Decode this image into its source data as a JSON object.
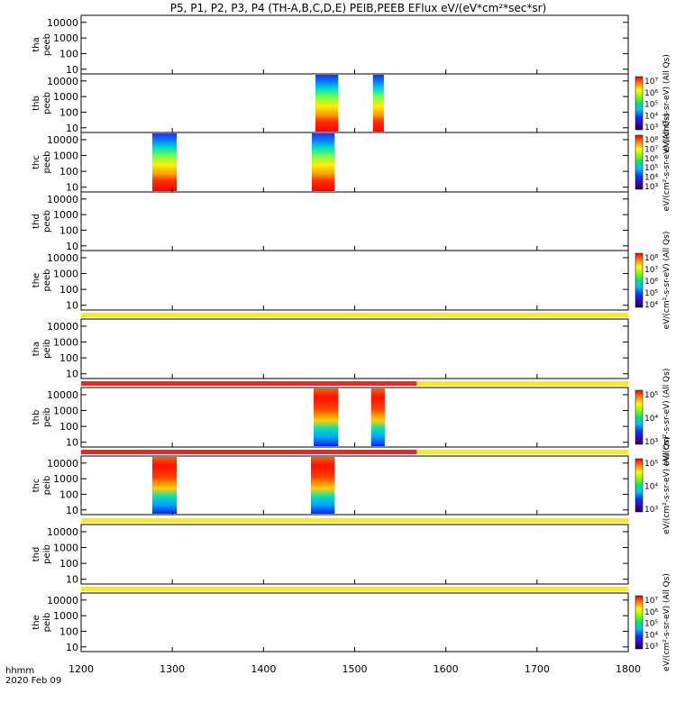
{
  "title": "P5, P1, P2, P3, P4 (TH-A,B,C,D,E) PEIB,PEEB EFlux eV/(eV*cm²*sec*sr)",
  "x_axis": {
    "label_line1": "hhmm",
    "label_line2": "2020 Feb 09",
    "ticks": [
      "1200",
      "1300",
      "1400",
      "1500",
      "1600",
      "1700",
      "1800"
    ]
  },
  "chart_data": {
    "type": "heatmap",
    "time_range": [
      1200,
      1800
    ],
    "energy_axis": {
      "scale": "log",
      "ticks": [
        "10",
        "100",
        "1000",
        "10000"
      ],
      "unit": "eV"
    },
    "panels": [
      {
        "id": "tha_peeb",
        "ylabel": [
          "tha",
          "peeb"
        ],
        "colorbar": {
          "ticks": [],
          "label": ""
        },
        "intervals": [],
        "flag_bar": null
      },
      {
        "id": "thb_peeb",
        "ylabel": [
          "thb",
          "peeb"
        ],
        "colorbar": {
          "ticks": [
            "10³",
            "10⁴",
            "10⁵",
            "10⁶",
            "10⁷"
          ],
          "label": "eV/(cm²-s-sr-eV) (All Qs)"
        },
        "intervals": [
          [
            1457,
            1482
          ],
          [
            1520,
            1532
          ]
        ],
        "flag_bar": null
      },
      {
        "id": "thc_peeb",
        "ylabel": [
          "thc",
          "peeb"
        ],
        "colorbar": {
          "ticks": [
            "10³",
            "10⁴",
            "10⁵",
            "10⁶",
            "10⁷",
            "10⁸"
          ],
          "label": "eV/(cm²-s-sr-eV) (All Qs)"
        },
        "intervals": [
          [
            1278,
            1305
          ],
          [
            1453,
            1478
          ]
        ],
        "flag_bar": null
      },
      {
        "id": "thd_peeb",
        "ylabel": [
          "thd",
          "peeb"
        ],
        "colorbar": {
          "ticks": [],
          "label": ""
        },
        "intervals": [],
        "flag_bar": null
      },
      {
        "id": "the_peeb",
        "ylabel": [
          "the",
          "peeb"
        ],
        "colorbar": {
          "ticks": [
            "10⁴",
            "10⁵",
            "10⁶",
            "10⁷",
            "10⁸"
          ],
          "label": "eV/(cm²-s-sr-eV) (All Qs)"
        },
        "intervals": [],
        "flag_bar": null
      },
      {
        "id": "tha_peib",
        "ylabel": [
          "tha",
          "peib"
        ],
        "colorbar": {
          "ticks": [],
          "label": ""
        },
        "intervals": [],
        "flag_bar": {
          "red_end": null,
          "yellow": true
        }
      },
      {
        "id": "thb_peib",
        "ylabel": [
          "thb",
          "peib"
        ],
        "colorbar": {
          "ticks": [
            "10³",
            "10⁴",
            "10⁵"
          ],
          "label": "eV/(cm²-s-sr-eV) (All Qs)"
        },
        "intervals": [
          [
            1455,
            1482
          ],
          [
            1518,
            1533
          ]
        ],
        "flag_bar": {
          "red_end": 1568,
          "yellow": true
        }
      },
      {
        "id": "thc_peib",
        "ylabel": [
          "thc",
          "peib"
        ],
        "colorbar": {
          "ticks": [
            "10³",
            "10⁴",
            "10⁵"
          ],
          "label": "eV/(cm²-s-sr-eV) (All Qs)"
        },
        "intervals": [
          [
            1278,
            1305
          ],
          [
            1452,
            1478
          ]
        ],
        "flag_bar": {
          "red_end": 1568,
          "yellow": true
        }
      },
      {
        "id": "thd_peib",
        "ylabel": [
          "thd",
          "peib"
        ],
        "colorbar": {
          "ticks": [],
          "label": ""
        },
        "intervals": [],
        "flag_bar": {
          "red_end": null,
          "yellow": true
        }
      },
      {
        "id": "the_peib",
        "ylabel": [
          "the",
          "peib"
        ],
        "colorbar": {
          "ticks": [
            "10³",
            "10⁴",
            "10⁵",
            "10⁶",
            "10⁷"
          ],
          "label": "eV/(cm²-s-sr-eV) (All Qs)"
        },
        "intervals": [],
        "flag_bar": {
          "red_end": null,
          "yellow": true
        }
      }
    ]
  },
  "colors": {
    "flag_red": "#ff2020",
    "flag_yellow": "#ffee00",
    "axis": "#000000"
  }
}
